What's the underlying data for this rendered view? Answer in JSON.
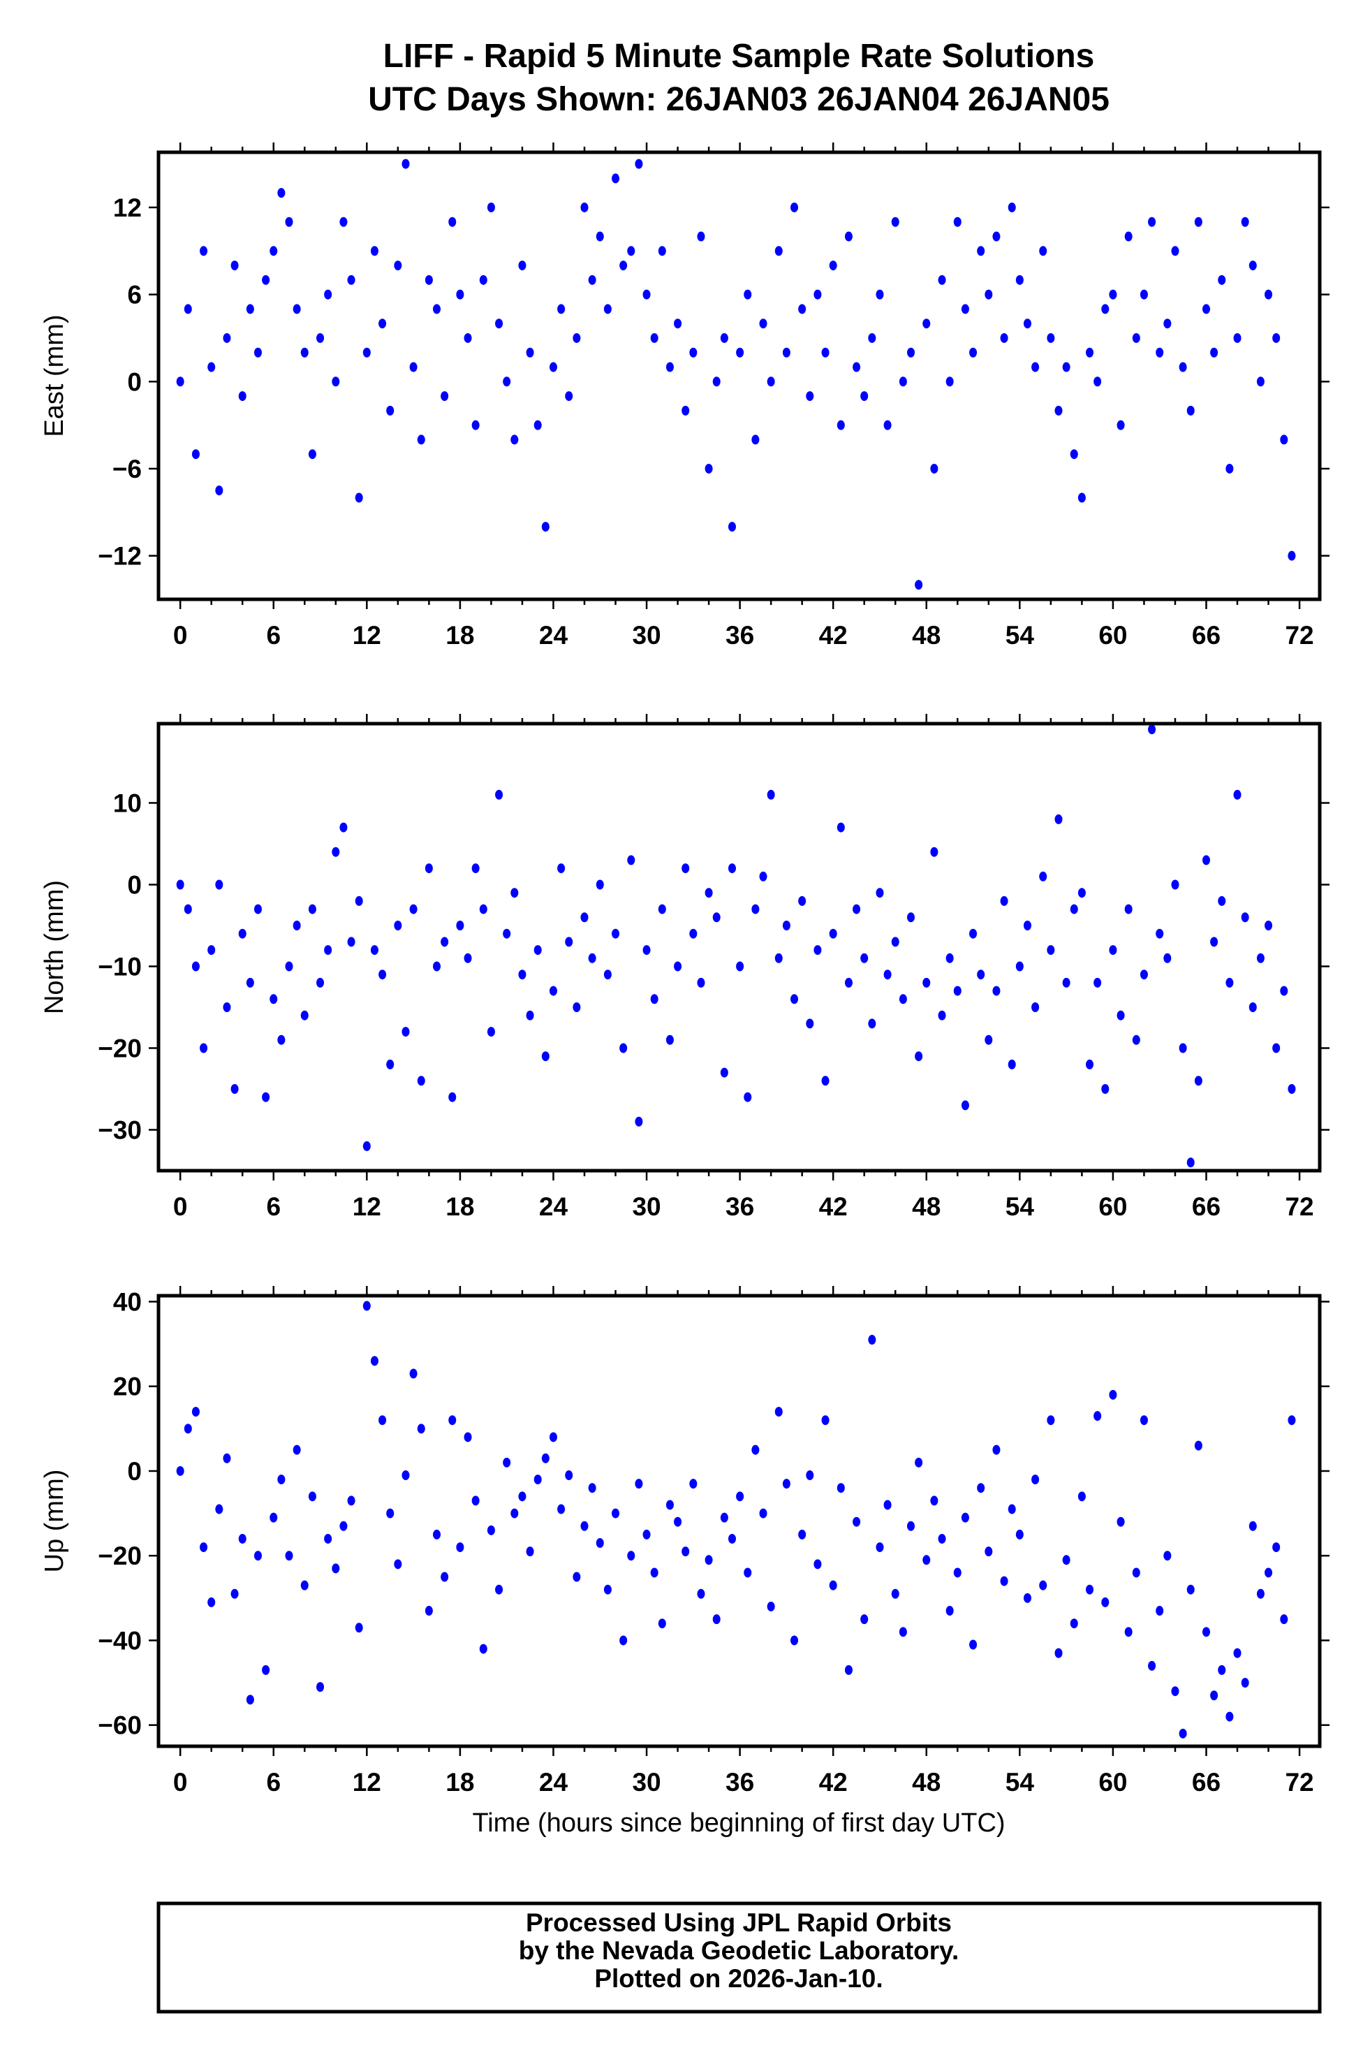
{
  "title": {
    "line1": "LIFF - Rapid 5 Minute Sample Rate Solutions",
    "line2": "UTC Days Shown:  26JAN03 26JAN04 26JAN05"
  },
  "footer": {
    "line1": "Processed Using JPL Rapid Orbits",
    "line2": "by the Nevada Geodetic Laboratory.",
    "line3": "Plotted on 2026-Jan-10."
  },
  "chart_data": [
    {
      "type": "scatter",
      "name": "east",
      "ylabel": "East (mm)",
      "xlabel": "",
      "xlim": [
        -1.4,
        73.3
      ],
      "ylim": [
        -15,
        15.8
      ],
      "xticks": [
        "0",
        "6",
        "12",
        "18",
        "24",
        "30",
        "36",
        "42",
        "48",
        "54",
        "60",
        "66",
        "72"
      ],
      "yticks": [
        {
          "v": 12,
          "label": "12"
        },
        {
          "v": 6,
          "label": "6"
        },
        {
          "v": 0,
          "label": "0"
        },
        {
          "v": -6,
          "label": "−6"
        },
        {
          "v": -12,
          "label": "−12"
        }
      ],
      "color": "#0000ff",
      "x_start": 0,
      "x_step": 0.5,
      "values": [
        0,
        5,
        -5,
        9,
        1,
        -7.5,
        3,
        8,
        -1,
        5,
        2,
        7,
        9,
        13,
        11,
        5,
        2,
        -5,
        3,
        6,
        0,
        11,
        7,
        -8,
        2,
        9,
        4,
        -2,
        8,
        15,
        1,
        -4,
        7,
        5,
        -1,
        11,
        6,
        3,
        -3,
        7,
        12,
        4,
        0,
        -4,
        8,
        2,
        -3,
        -10,
        1,
        5,
        -1,
        3,
        12,
        7,
        10,
        5,
        14,
        8,
        9,
        15,
        6,
        3,
        9,
        1,
        4,
        -2,
        2,
        10,
        -6,
        0,
        3,
        -10,
        2,
        6,
        -4,
        4,
        0,
        9,
        2,
        12,
        5,
        -1,
        6,
        2,
        8,
        -3,
        10,
        1,
        -1,
        3,
        6,
        -3,
        11,
        0,
        2,
        -14,
        4,
        -6,
        7,
        0,
        11,
        5,
        2,
        9,
        6,
        10,
        3,
        12,
        7,
        4,
        1,
        9,
        3,
        -2,
        1,
        -5,
        -8,
        2,
        0,
        5,
        6,
        -3,
        10,
        3,
        6,
        11,
        2,
        4,
        9,
        1,
        -2,
        11,
        5,
        2,
        7,
        -6,
        3,
        11,
        8,
        0,
        6,
        3,
        -4,
        -12
      ]
    },
    {
      "type": "scatter",
      "name": "north",
      "ylabel": "North (mm)",
      "xlabel": "",
      "xlim": [
        -1.4,
        73.3
      ],
      "ylim": [
        -35,
        19.7
      ],
      "xticks": [
        "0",
        "6",
        "12",
        "18",
        "24",
        "30",
        "36",
        "42",
        "48",
        "54",
        "60",
        "66",
        "72"
      ],
      "yticks": [
        {
          "v": 10,
          "label": "10"
        },
        {
          "v": 0,
          "label": "0"
        },
        {
          "v": -10,
          "label": "−10"
        },
        {
          "v": -20,
          "label": "−20"
        },
        {
          "v": -30,
          "label": "−30"
        }
      ],
      "color": "#0000ff",
      "x_start": 0,
      "x_step": 0.5,
      "values": [
        0,
        -3,
        -10,
        -20,
        -8,
        0,
        -15,
        -25,
        -6,
        -12,
        -3,
        -26,
        -14,
        -19,
        -10,
        -5,
        -16,
        -3,
        -12,
        -8,
        4,
        7,
        -7,
        -2,
        -32,
        -8,
        -11,
        -22,
        -5,
        -18,
        -3,
        -24,
        2,
        -10,
        -7,
        -26,
        -5,
        -9,
        2,
        -3,
        -18,
        11,
        -6,
        -1,
        -11,
        -16,
        -8,
        -21,
        -13,
        2,
        -7,
        -15,
        -4,
        -9,
        0,
        -11,
        -6,
        -20,
        3,
        -29,
        -8,
        -14,
        -3,
        -19,
        -10,
        2,
        -6,
        -12,
        -1,
        -4,
        -23,
        2,
        -10,
        -26,
        -3,
        1,
        11,
        -9,
        -5,
        -14,
        -2,
        -17,
        -8,
        -24,
        -6,
        7,
        -12,
        -3,
        -9,
        -17,
        -1,
        -11,
        -7,
        -14,
        -4,
        -21,
        -12,
        4,
        -16,
        -9,
        -13,
        -27,
        -6,
        -11,
        -19,
        -13,
        -2,
        -22,
        -10,
        -5,
        -15,
        1,
        -8,
        8,
        -12,
        -3,
        -1,
        -22,
        -12,
        -25,
        -8,
        -16,
        -3,
        -19,
        -11,
        19,
        -6,
        -9,
        0,
        -20,
        -34,
        -24,
        3,
        -7,
        -2,
        -12,
        11,
        -4,
        -15,
        -9,
        -5,
        -20,
        -13,
        -25
      ]
    },
    {
      "type": "scatter",
      "name": "up",
      "ylabel": "Up (mm)",
      "xlabel": "Time (hours since beginning of first day UTC)",
      "xlim": [
        -1.4,
        73.3
      ],
      "ylim": [
        -65,
        41.4
      ],
      "xticks": [
        "0",
        "6",
        "12",
        "18",
        "24",
        "30",
        "36",
        "42",
        "48",
        "54",
        "60",
        "66",
        "72"
      ],
      "yticks": [
        {
          "v": 40,
          "label": "40"
        },
        {
          "v": 20,
          "label": "20"
        },
        {
          "v": 0,
          "label": "0"
        },
        {
          "v": -20,
          "label": "−20"
        },
        {
          "v": -40,
          "label": "−40"
        },
        {
          "v": -60,
          "label": "−60"
        }
      ],
      "color": "#0000ff",
      "x_start": 0,
      "x_step": 0.5,
      "values": [
        0,
        10,
        14,
        -18,
        -31,
        -9,
        3,
        -29,
        -16,
        -54,
        -20,
        -47,
        -11,
        -2,
        -20,
        5,
        -27,
        -6,
        -51,
        -16,
        -23,
        -13,
        -7,
        -37,
        39,
        26,
        12,
        -10,
        -22,
        -1,
        23,
        10,
        -33,
        -15,
        -25,
        12,
        -18,
        8,
        -7,
        -42,
        -14,
        -28,
        2,
        -10,
        -6,
        -19,
        -2,
        3,
        8,
        -9,
        -1,
        -25,
        -13,
        -4,
        -17,
        -28,
        -10,
        -40,
        -20,
        -3,
        -15,
        -24,
        -36,
        -8,
        -12,
        -19,
        -3,
        -29,
        -21,
        -35,
        -11,
        -16,
        -6,
        -24,
        5,
        -10,
        -32,
        14,
        -3,
        -40,
        -15,
        -1,
        -22,
        12,
        -27,
        -4,
        -47,
        -12,
        -35,
        31,
        -18,
        -8,
        -29,
        -38,
        -13,
        2,
        -21,
        -7,
        -16,
        -33,
        -24,
        -11,
        -41,
        -4,
        -19,
        5,
        -26,
        -9,
        -15,
        -30,
        -2,
        -27,
        12,
        -43,
        -21,
        -36,
        -6,
        -28,
        13,
        -31,
        18,
        -12,
        -38,
        -24,
        12,
        -46,
        -33,
        -20,
        -52,
        -62,
        -28,
        6,
        -38,
        -53,
        -47,
        -58,
        -43,
        -50,
        -13,
        -29,
        -24,
        -18,
        -35,
        12
      ]
    }
  ]
}
